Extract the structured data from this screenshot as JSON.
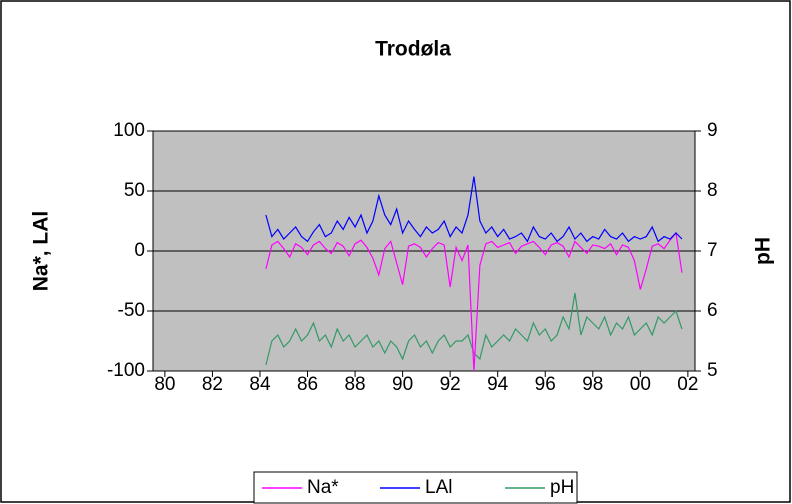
{
  "chart_data": {
    "type": "line",
    "title": "Trodøla",
    "ylabel": "Na*, LAl",
    "y2label": "pH",
    "xlim": [
      79.5,
      102.3
    ],
    "xticks": [
      80,
      82,
      84,
      86,
      88,
      90,
      92,
      94,
      96,
      98,
      {
        "value": 100,
        "label": "00"
      },
      {
        "value": 102,
        "label": "02"
      }
    ],
    "ylim": [
      -100,
      100
    ],
    "yticks": [
      -100,
      -50,
      0,
      50,
      100
    ],
    "y2lim": [
      5,
      9
    ],
    "y2ticks": [
      5,
      6,
      7,
      8,
      9
    ],
    "grid": true,
    "legend": "bottom",
    "x": [
      84.25,
      84.5,
      84.75,
      85,
      85.25,
      85.5,
      85.75,
      86,
      86.25,
      86.5,
      86.75,
      87,
      87.25,
      87.5,
      87.75,
      88,
      88.25,
      88.5,
      88.75,
      89,
      89.25,
      89.5,
      89.75,
      90,
      90.25,
      90.5,
      90.75,
      91,
      91.25,
      91.5,
      91.75,
      92,
      92.25,
      92.5,
      92.75,
      93,
      93.25,
      93.5,
      93.75,
      94,
      94.25,
      94.5,
      94.75,
      95,
      95.25,
      95.5,
      95.75,
      96,
      96.25,
      96.5,
      96.75,
      97,
      97.25,
      97.5,
      97.75,
      98,
      98.25,
      98.5,
      98.75,
      99,
      99.25,
      99.5,
      99.75,
      100,
      100.25,
      100.5,
      100.75,
      101,
      101.25,
      101.5,
      101.75
    ],
    "series": [
      {
        "name": "Na*",
        "color": "#ff00ff",
        "values": [
          -15,
          5,
          8,
          2,
          -5,
          6,
          3,
          -3,
          5,
          8,
          2,
          -2,
          7,
          4,
          -4,
          6,
          9,
          3,
          -6,
          -20,
          2,
          8,
          -10,
          -28,
          4,
          6,
          3,
          -5,
          2,
          7,
          5,
          -30,
          3,
          -8,
          5,
          -100,
          -12,
          6,
          8,
          3,
          5,
          7,
          -2,
          4,
          6,
          8,
          3,
          -3,
          5,
          7,
          4,
          -5,
          8,
          3,
          -2,
          5,
          4,
          2,
          6,
          -3,
          5,
          3,
          -8,
          -32,
          -15,
          4,
          6,
          2,
          9,
          15,
          -18
        ]
      },
      {
        "name": "LAl",
        "color": "#0000ff",
        "values": [
          30,
          12,
          18,
          10,
          15,
          20,
          12,
          8,
          16,
          22,
          12,
          15,
          25,
          18,
          28,
          20,
          30,
          15,
          25,
          46,
          30,
          22,
          35,
          15,
          25,
          18,
          12,
          20,
          15,
          18,
          25,
          12,
          20,
          15,
          30,
          62,
          25,
          15,
          20,
          12,
          18,
          10,
          12,
          15,
          8,
          20,
          12,
          10,
          15,
          8,
          12,
          20,
          10,
          15,
          8,
          12,
          10,
          18,
          12,
          10,
          15,
          8,
          12,
          10,
          12,
          20,
          8,
          12,
          10,
          15,
          10
        ]
      },
      {
        "name": "pH",
        "color": "#339966",
        "axis": "y2",
        "values": [
          5.1,
          5.5,
          5.6,
          5.4,
          5.5,
          5.7,
          5.5,
          5.6,
          5.8,
          5.5,
          5.6,
          5.4,
          5.7,
          5.5,
          5.6,
          5.4,
          5.5,
          5.6,
          5.4,
          5.5,
          5.3,
          5.5,
          5.4,
          5.2,
          5.5,
          5.6,
          5.4,
          5.5,
          5.3,
          5.5,
          5.6,
          5.4,
          5.5,
          5.5,
          5.6,
          5.3,
          5.2,
          5.6,
          5.4,
          5.5,
          5.6,
          5.5,
          5.7,
          5.6,
          5.5,
          5.8,
          5.6,
          5.7,
          5.5,
          5.6,
          5.9,
          5.7,
          6.3,
          5.6,
          5.9,
          5.8,
          5.7,
          5.9,
          5.6,
          5.8,
          5.7,
          5.9,
          5.6,
          5.7,
          5.8,
          5.6,
          5.9,
          5.8,
          5.9,
          6.0,
          5.7
        ]
      }
    ]
  }
}
